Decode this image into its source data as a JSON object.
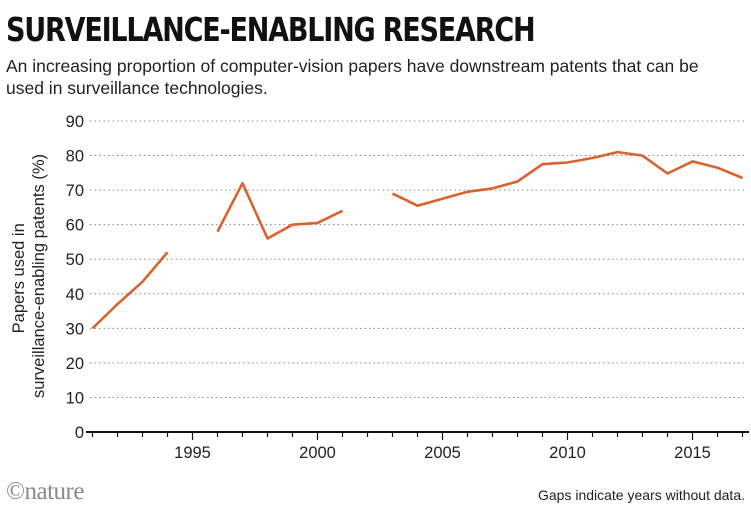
{
  "header": {
    "title": "SURVEILLANCE-ENABLING RESEARCH",
    "subtitle": "An increasing proportion of computer-vision papers have downstream patents that can be used in surveillance technologies."
  },
  "footer": {
    "logo": "©nature",
    "note": "Gaps indicate years without data."
  },
  "colors": {
    "line": "#d8632f",
    "grid": "#888888",
    "axis": "#111111"
  },
  "chart_data": {
    "type": "line",
    "title": "SURVEILLANCE-ENABLING RESEARCH",
    "ylabel_lines": [
      "Papers used in",
      "surveillance-enabling patents (%)"
    ],
    "xlabel": "",
    "xlim": [
      1990.9,
      2017.1
    ],
    "ylim": [
      0,
      90
    ],
    "xticks": [
      1995,
      2000,
      2005,
      2010,
      2015
    ],
    "yticks": [
      0,
      10,
      20,
      30,
      40,
      50,
      60,
      70,
      80,
      90
    ],
    "grid": "horizontal dotted",
    "segments": [
      [
        [
          1991,
          30
        ],
        [
          1992,
          37
        ],
        [
          1993,
          43.5
        ],
        [
          1994,
          52
        ]
      ],
      [
        [
          1996,
          58
        ],
        [
          1997,
          72
        ],
        [
          1998,
          56
        ],
        [
          1999,
          60
        ],
        [
          2000,
          60.5
        ],
        [
          2001,
          64
        ]
      ],
      [
        [
          2003,
          69
        ],
        [
          2004,
          65.5
        ],
        [
          2005,
          67.5
        ],
        [
          2006,
          69.5
        ],
        [
          2007,
          70.5
        ],
        [
          2008,
          72.5
        ],
        [
          2009,
          77.5
        ],
        [
          2010,
          78
        ],
        [
          2011,
          79.3
        ],
        [
          2012,
          81
        ],
        [
          2013,
          80
        ],
        [
          2014,
          74.8
        ],
        [
          2015,
          78.3
        ],
        [
          2016,
          76.5
        ],
        [
          2017,
          73.5
        ]
      ]
    ]
  }
}
